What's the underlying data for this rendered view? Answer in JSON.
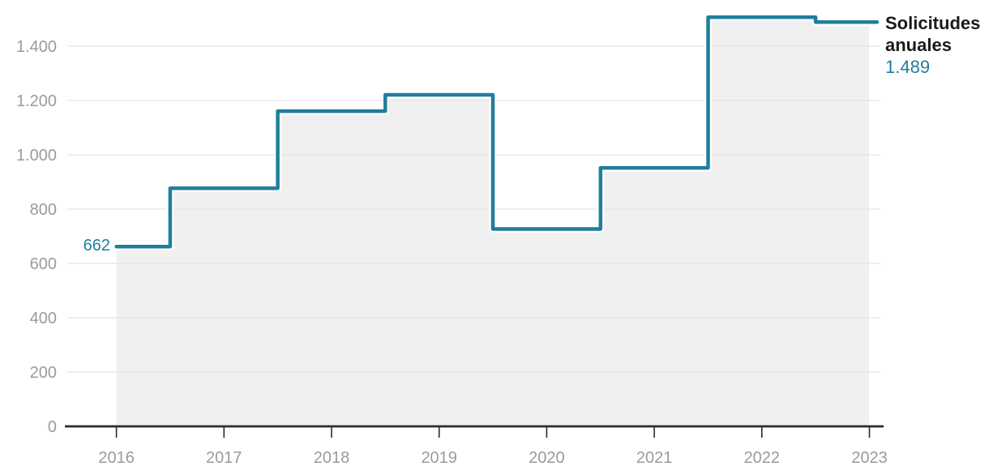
{
  "chart_data": {
    "type": "area",
    "variant": "step",
    "title": "",
    "xlabel": "",
    "ylabel": "",
    "categories": [
      "2016",
      "2017",
      "2018",
      "2019",
      "2020",
      "2021",
      "2022",
      "2023"
    ],
    "series": [
      {
        "name": "Solicitudes anuales",
        "values": [
          662,
          877,
          1161,
          1221,
          727,
          952,
          1507,
          1489
        ]
      }
    ],
    "ylim": [
      0,
      1400
    ],
    "y_tick_values": [
      0,
      200,
      400,
      600,
      800,
      1000,
      1200,
      1400
    ],
    "y_tick_labels": [
      "0",
      "200",
      "400",
      "600",
      "800",
      "1.000",
      "1.200",
      "1.400"
    ],
    "grid": true,
    "legend_position": "right",
    "annotations": {
      "start_label": "662",
      "end_label": "1.489"
    },
    "colors": {
      "line": "#1f7e9c",
      "line_halo": "#ffffff",
      "area_fill": "#f0f0f0",
      "gridline": "#e4e4e4",
      "axis_line": "#2b2b2b",
      "tick_label": "#9b9b9b",
      "legend_text": "#1a1a1a"
    }
  },
  "legend": {
    "title": "Solicitudes anuales",
    "value": "1.489"
  }
}
